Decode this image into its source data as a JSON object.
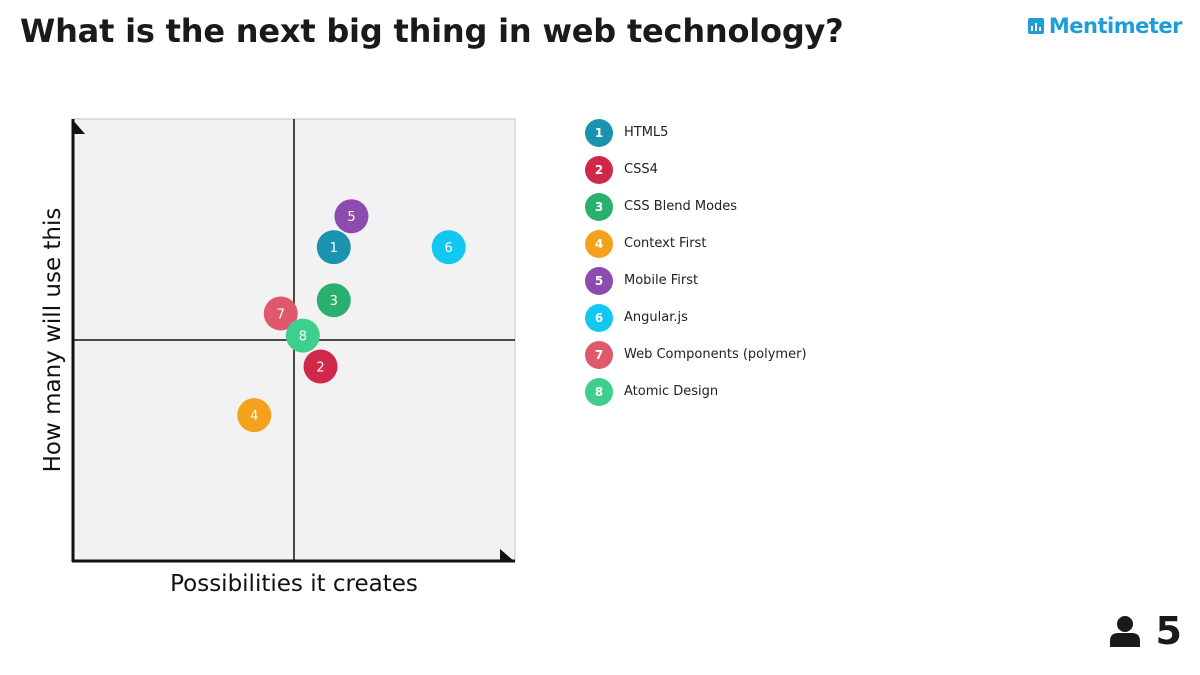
{
  "title": "What is the next big thing in web technology?",
  "brand": {
    "name": "Mentimeter",
    "color": "#1e9dd8",
    "icon": "bar-chart-icon"
  },
  "participants": {
    "icon": "person-icon",
    "count": "5"
  },
  "chart_data": {
    "type": "scatter",
    "title": "",
    "xlabel": "Possibilities it creates",
    "ylabel": "How many will use this",
    "xlim": [
      0,
      10
    ],
    "ylim": [
      0,
      10
    ],
    "quadrant_dividers": {
      "x": 5,
      "y": 5
    },
    "grid": false,
    "legend_position": "right",
    "points": [
      {
        "id": "1",
        "label": "HTML5",
        "x": 5.9,
        "y": 7.1,
        "color": "#1993ae"
      },
      {
        "id": "2",
        "label": "CSS4",
        "x": 5.6,
        "y": 4.4,
        "color": "#d0284b"
      },
      {
        "id": "3",
        "label": "CSS Blend Modes",
        "x": 5.9,
        "y": 5.9,
        "color": "#2ab06e"
      },
      {
        "id": "4",
        "label": "Context First",
        "x": 4.1,
        "y": 3.3,
        "color": "#f4a11d"
      },
      {
        "id": "5",
        "label": "Mobile First",
        "x": 6.3,
        "y": 7.8,
        "color": "#8e4baf"
      },
      {
        "id": "6",
        "label": "Angular.js",
        "x": 8.5,
        "y": 7.1,
        "color": "#13c8f0"
      },
      {
        "id": "7",
        "label": "Web Components (polymer)",
        "x": 4.7,
        "y": 5.6,
        "color": "#dd596b"
      },
      {
        "id": "8",
        "label": "Atomic Design",
        "x": 5.2,
        "y": 5.1,
        "color": "#3ecf8e"
      }
    ]
  }
}
